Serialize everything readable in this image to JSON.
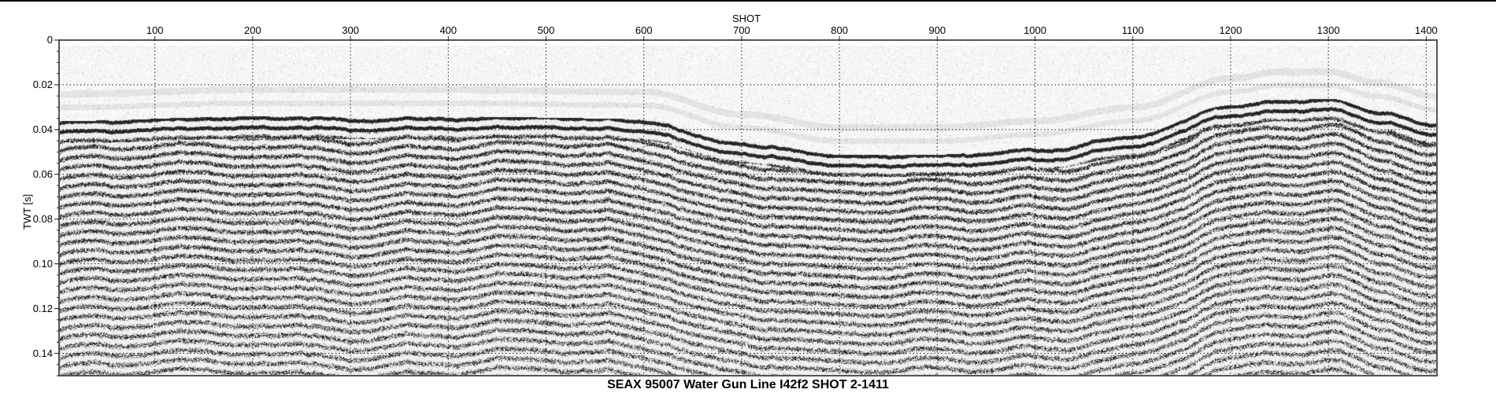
{
  "chart_data": {
    "type": "heatmap",
    "title": "SEAX 95007 Water Gun Line I42f2 SHOT 2-1411",
    "xlabel": "SHOT",
    "ylabel": "TWT [s]",
    "xlim": [
      2,
      1411
    ],
    "ylim": [
      0,
      0.15
    ],
    "x_ticks": [
      100,
      200,
      300,
      400,
      500,
      600,
      700,
      800,
      900,
      1000,
      1100,
      1200,
      1300,
      1400
    ],
    "x_tick_labels": [
      "100",
      "200",
      "300",
      "400",
      "500",
      "600",
      "700",
      "800",
      "900",
      "1000",
      "1100",
      "1200",
      "1300",
      "1400"
    ],
    "y_ticks": [
      0,
      0.02,
      0.04,
      0.06,
      0.08,
      0.1,
      0.12,
      0.14
    ],
    "y_tick_labels": [
      "0",
      "0.02",
      "0.04",
      "0.06",
      "0.08",
      "0.10",
      "0.12",
      "0.14"
    ],
    "x_axis_position": "top",
    "y_axis_reversed": true,
    "grid": true,
    "colormap": "grayscale",
    "seafloor_twt": {
      "shot": [
        2,
        200,
        400,
        600,
        700,
        800,
        900,
        1000,
        1100,
        1200,
        1250,
        1300,
        1350,
        1411
      ],
      "twt": [
        0.036,
        0.034,
        0.034,
        0.035,
        0.045,
        0.051,
        0.051,
        0.048,
        0.042,
        0.029,
        0.026,
        0.026,
        0.031,
        0.037
      ]
    }
  }
}
